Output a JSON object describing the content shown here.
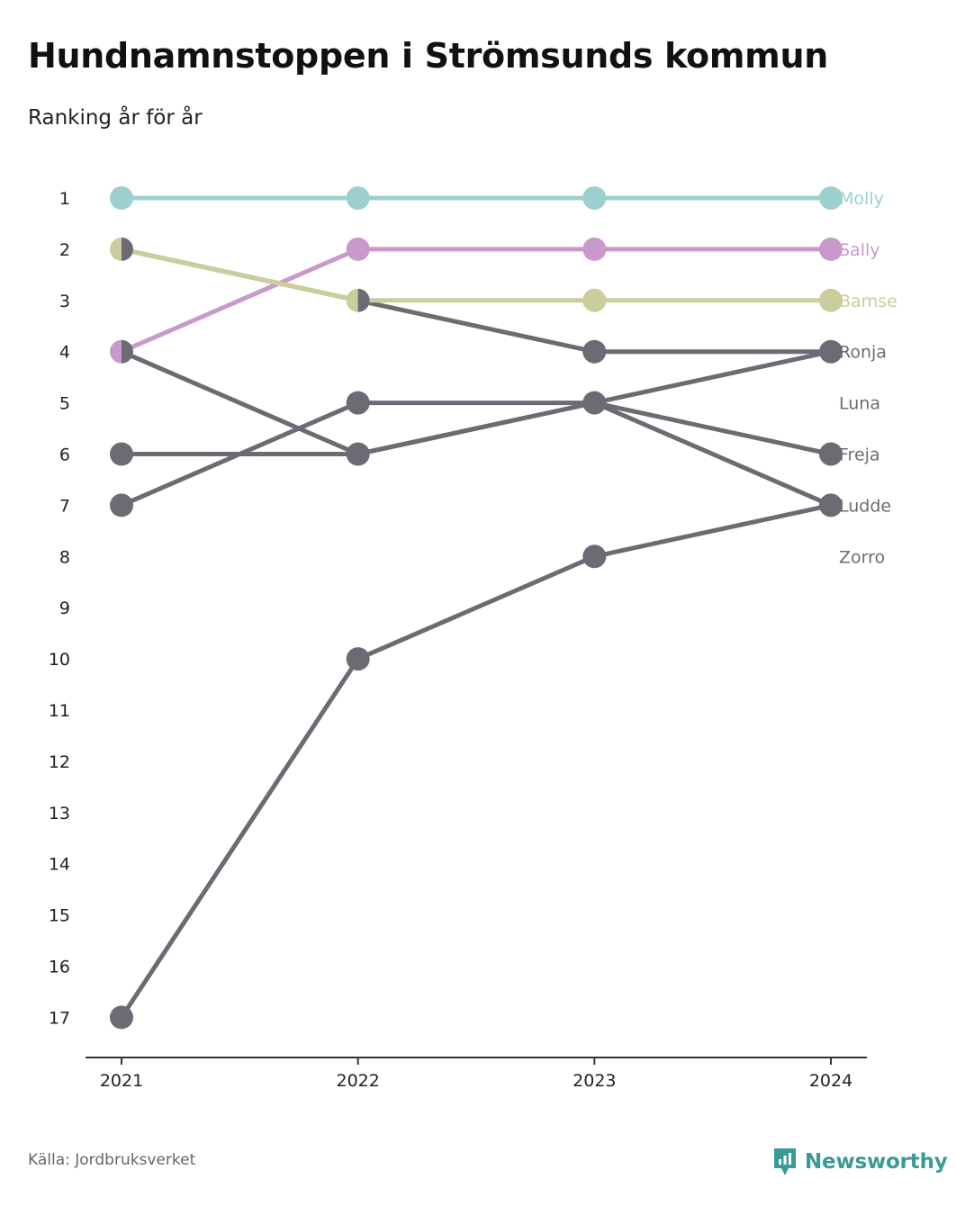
{
  "header": {
    "title": "Hundnamnstoppen i Strömsunds kommun",
    "subtitle": "Ranking år för år"
  },
  "footer": {
    "source": "Källa: Jordbruksverket",
    "brand": "Newsworthy",
    "brand_icon": "newsworthy-logo-icon",
    "brand_color": "#3a9a98"
  },
  "chart_data": {
    "type": "line",
    "x": [
      "2021",
      "2022",
      "2023",
      "2024"
    ],
    "y_ticks": [
      1,
      2,
      3,
      4,
      5,
      6,
      7,
      8,
      9,
      10,
      11,
      12,
      13,
      14,
      15,
      16,
      17
    ],
    "ylim": [
      1,
      17
    ],
    "y_reversed": true,
    "grid": false,
    "legend": "end-labels-right",
    "series": [
      {
        "name": "Molly",
        "color": "#9ecfcf",
        "values": [
          1,
          1,
          1,
          1
        ]
      },
      {
        "name": "Sally",
        "color": "#c999cc",
        "values": [
          4,
          2,
          2,
          2
        ]
      },
      {
        "name": "Bamse",
        "color": "#cbcd9d",
        "values": [
          2,
          3,
          3,
          3
        ]
      },
      {
        "name": "Ronja",
        "color": "#6c6b73",
        "values": [
          2,
          3,
          4,
          4
        ]
      },
      {
        "name": "Luna",
        "color": "#6c6b73",
        "values": [
          7,
          5,
          5,
          4
        ]
      },
      {
        "name": "Freja",
        "color": "#6c6b73",
        "values": [
          6,
          6,
          5,
          6
        ]
      },
      {
        "name": "Ludde",
        "color": "#6c6b73",
        "values": [
          4,
          6,
          5,
          7
        ]
      },
      {
        "name": "Zorro",
        "color": "#6c6b73",
        "values": [
          17,
          10,
          8,
          7
        ]
      }
    ]
  }
}
